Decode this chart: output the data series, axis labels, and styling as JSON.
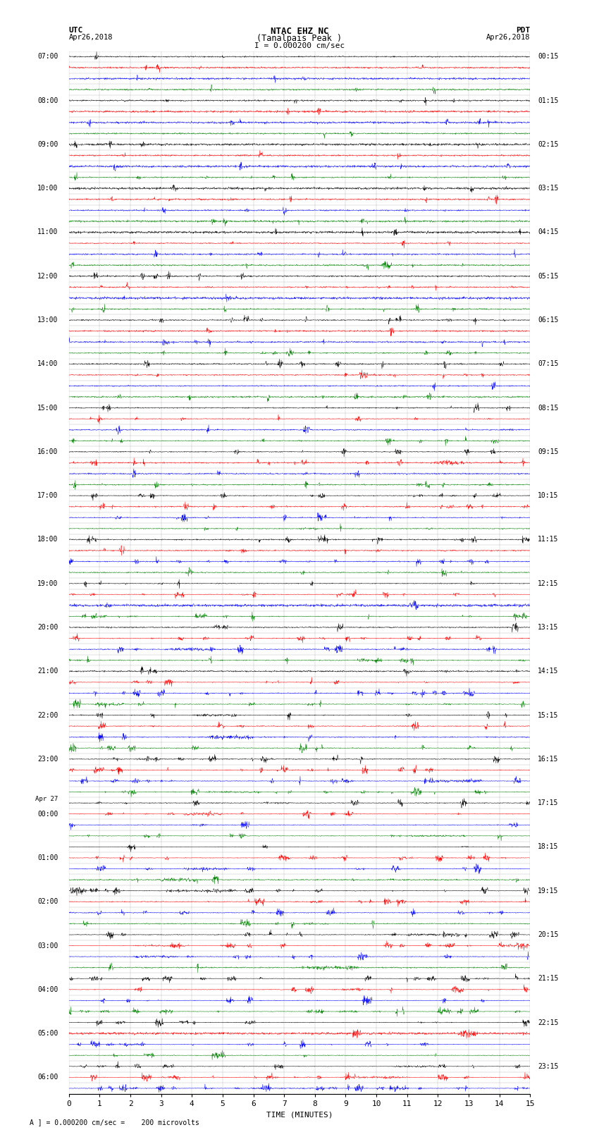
{
  "title_line1": "NTAC EHZ NC",
  "title_line2": "(Tanalpais Peak )",
  "title_line3": "I = 0.000200 cm/sec",
  "xlabel": "TIME (MINUTES)",
  "footnote": "A ] = 0.000200 cm/sec =    200 microvolts",
  "utc_times": [
    "07:00",
    "",
    "",
    "",
    "08:00",
    "",
    "",
    "",
    "09:00",
    "",
    "",
    "",
    "10:00",
    "",
    "",
    "",
    "11:00",
    "",
    "",
    "",
    "12:00",
    "",
    "",
    "",
    "13:00",
    "",
    "",
    "",
    "14:00",
    "",
    "",
    "",
    "15:00",
    "",
    "",
    "",
    "16:00",
    "",
    "",
    "",
    "17:00",
    "",
    "",
    "",
    "18:00",
    "",
    "",
    "",
    "19:00",
    "",
    "",
    "",
    "20:00",
    "",
    "",
    "",
    "21:00",
    "",
    "",
    "",
    "22:00",
    "",
    "",
    "",
    "23:00",
    "",
    "",
    "",
    "Apr27",
    "00:00",
    "",
    "",
    "",
    "01:00",
    "",
    "",
    "",
    "02:00",
    "",
    "",
    "",
    "03:00",
    "",
    "",
    "",
    "04:00",
    "",
    "",
    "",
    "05:00",
    "",
    "",
    "",
    "06:00",
    "",
    ""
  ],
  "pdt_times": [
    "00:15",
    "",
    "",
    "",
    "01:15",
    "",
    "",
    "",
    "02:15",
    "",
    "",
    "",
    "03:15",
    "",
    "",
    "",
    "04:15",
    "",
    "",
    "",
    "05:15",
    "",
    "",
    "",
    "06:15",
    "",
    "",
    "",
    "07:15",
    "",
    "",
    "",
    "08:15",
    "",
    "",
    "",
    "09:15",
    "",
    "",
    "",
    "10:15",
    "",
    "",
    "",
    "11:15",
    "",
    "",
    "",
    "12:15",
    "",
    "",
    "",
    "13:15",
    "",
    "",
    "",
    "14:15",
    "",
    "",
    "",
    "15:15",
    "",
    "",
    "",
    "16:15",
    "",
    "",
    "",
    "17:15",
    "",
    "",
    "",
    "18:15",
    "",
    "",
    "",
    "19:15",
    "",
    "",
    "",
    "20:15",
    "",
    "",
    "",
    "21:15",
    "",
    "",
    "",
    "22:15",
    "",
    "",
    "",
    "23:15",
    "",
    ""
  ],
  "num_rows": 95,
  "row_colors_cycle": [
    "black",
    "red",
    "blue",
    "green"
  ],
  "xmin": 0,
  "xmax": 15,
  "bg_color": "white"
}
